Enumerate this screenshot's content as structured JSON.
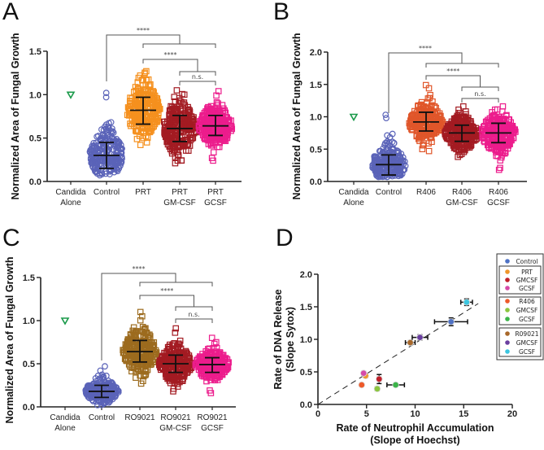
{
  "panels": [
    {
      "letter": "A",
      "ylabel": "Normalized Area of  Fungal Growth",
      "ylim": [
        0,
        1.5
      ],
      "yticks": [
        {
          "v": 0,
          "label": "0.0"
        },
        {
          "v": 0.5,
          "label": "0.5"
        },
        {
          "v": 1.0,
          "label": "1.0"
        },
        {
          "v": 1.5,
          "label": "1.5"
        }
      ],
      "groups": [
        {
          "label": [
            "Candida",
            "Alone"
          ],
          "marker": "triangle",
          "color": "#1a9a4a",
          "mean": 1.0
        },
        {
          "label": [
            "Control"
          ],
          "marker": "circle",
          "color": "#5a63b8",
          "mean": 0.3,
          "sd_low": 0.15,
          "sd_high": 0.45,
          "min": 0.07,
          "max": 1.02
        },
        {
          "label": [
            "PRT"
          ],
          "marker": "square",
          "color": "#f5901e",
          "mean": 0.82,
          "sd_low": 0.66,
          "sd_high": 0.97,
          "min": 0.42,
          "max": 1.27
        },
        {
          "label": [
            "PRT",
            "GM-CSF"
          ],
          "marker": "square",
          "color": "#a31b22",
          "mean": 0.61,
          "sd_low": 0.46,
          "sd_high": 0.76,
          "min": 0.21,
          "max": 1.05
        },
        {
          "label": [
            "PRT",
            "GCSF"
          ],
          "marker": "square",
          "color": "#ec1c8c",
          "mean": 0.64,
          "sd_low": 0.53,
          "sd_high": 0.76,
          "min": 0.24,
          "max": 1.04
        }
      ],
      "brackets": [
        {
          "label": "****"
        },
        {
          "label": "****"
        },
        {
          "label": "n.s."
        }
      ]
    },
    {
      "letter": "B",
      "ylabel": "Normalized Area of  Fungal Growth",
      "ylim": [
        0,
        2.0
      ],
      "yticks": [
        {
          "v": 0,
          "label": "0.0"
        },
        {
          "v": 0.5,
          "label": "0.5"
        },
        {
          "v": 1.0,
          "label": "1.0"
        },
        {
          "v": 1.5,
          "label": "1.5"
        },
        {
          "v": 2.0,
          "label": "2.0"
        }
      ],
      "groups": [
        {
          "label": [
            "Candida",
            "Alone"
          ],
          "marker": "triangle",
          "color": "#1a9a4a",
          "mean": 1.0
        },
        {
          "label": [
            "Control"
          ],
          "marker": "circle",
          "color": "#5a63b8",
          "mean": 0.26,
          "sd_low": 0.1,
          "sd_high": 0.41,
          "min": 0.07,
          "max": 1.03
        },
        {
          "label": [
            "R406"
          ],
          "marker": "square",
          "color": "#e0562a",
          "mean": 0.92,
          "sd_low": 0.78,
          "sd_high": 1.07,
          "min": 0.47,
          "max": 1.49
        },
        {
          "label": [
            "R406",
            "GM-CSF"
          ],
          "marker": "square",
          "color": "#a31b22",
          "mean": 0.75,
          "sd_low": 0.62,
          "sd_high": 0.87,
          "min": 0.38,
          "max": 1.16
        },
        {
          "label": [
            "R406",
            "GCSF"
          ],
          "marker": "square",
          "color": "#ec1c8c",
          "mean": 0.75,
          "sd_low": 0.6,
          "sd_high": 0.9,
          "min": 0.18,
          "max": 1.16
        }
      ],
      "brackets": [
        {
          "label": "****"
        },
        {
          "label": "****"
        },
        {
          "label": "n.s."
        }
      ]
    },
    {
      "letter": "C",
      "ylabel": "Normalized Area of  Fungal Growth",
      "ylim": [
        0,
        1.5
      ],
      "yticks": [
        {
          "v": 0,
          "label": "0.0"
        },
        {
          "v": 0.5,
          "label": "0.5"
        },
        {
          "v": 1.0,
          "label": "1.0"
        },
        {
          "v": 1.5,
          "label": "1.5"
        }
      ],
      "groups": [
        {
          "label": [
            "Candida",
            "Alone"
          ],
          "marker": "triangle",
          "color": "#1a9a4a",
          "mean": 1.0
        },
        {
          "label": [
            "Control"
          ],
          "marker": "circle",
          "color": "#5a63b8",
          "mean": 0.18,
          "sd_low": 0.11,
          "sd_high": 0.25,
          "min": 0.02,
          "max": 0.47
        },
        {
          "label": [
            "RO9021"
          ],
          "marker": "square",
          "color": "#9c6b1e",
          "mean": 0.64,
          "sd_low": 0.52,
          "sd_high": 0.77,
          "min": 0.27,
          "max": 1.1
        },
        {
          "label": [
            "RO9021",
            "GM-CSF"
          ],
          "marker": "square",
          "color": "#a31b22",
          "mean": 0.5,
          "sd_low": 0.4,
          "sd_high": 0.6,
          "min": 0.18,
          "max": 0.91
        },
        {
          "label": [
            "RO9021",
            "GCSF"
          ],
          "marker": "square",
          "color": "#ec1c8c",
          "mean": 0.49,
          "sd_low": 0.4,
          "sd_high": 0.57,
          "min": 0.16,
          "max": 0.8
        }
      ],
      "brackets": [
        {
          "label": "****"
        },
        {
          "label": "****"
        },
        {
          "label": "n.s."
        }
      ]
    }
  ],
  "chart_data": {
    "type": "scatter",
    "letter": "D",
    "xlabel": [
      "Rate of  Neutrophil Accumulation",
      "(Slope of  Hoechst)"
    ],
    "ylabel": [
      "Rate of DNA Release",
      "(Slope Sytox)"
    ],
    "xlim": [
      0,
      20
    ],
    "ylim": [
      0,
      2.0
    ],
    "xticks": [
      {
        "v": 0,
        "label": "0"
      },
      {
        "v": 5,
        "label": "5"
      },
      {
        "v": 10,
        "label": "10"
      },
      {
        "v": 15,
        "label": "15"
      },
      {
        "v": 20,
        "label": "20"
      }
    ],
    "yticks": [
      {
        "v": 0,
        "label": "0.0"
      },
      {
        "v": 0.5,
        "label": "0.5"
      },
      {
        "v": 1.0,
        "label": "1.0"
      },
      {
        "v": 1.5,
        "label": "1.5"
      },
      {
        "v": 2.0,
        "label": "2.0"
      }
    ],
    "trendline": {
      "style": "dashed",
      "from": [
        0,
        0
      ],
      "to": [
        16.5,
        1.55
      ]
    },
    "legend_position": "right",
    "legend_groups": [
      [
        {
          "name": "Control",
          "color": "#4f72c4"
        }
      ],
      [
        {
          "name": "PRT",
          "color": "#f0962a"
        },
        {
          "name": "GMCSF",
          "color": "#c0202a"
        },
        {
          "name": "GCSF",
          "color": "#d64aa8"
        }
      ],
      [
        {
          "name": "R406",
          "color": "#ee5a2a"
        },
        {
          "name": "GMCSF",
          "color": "#8cc63f"
        },
        {
          "name": "GCSF",
          "color": "#3cb44a"
        }
      ],
      [
        {
          "name": "R09021",
          "color": "#a8682a"
        },
        {
          "name": "GMCSF",
          "color": "#6a3fa0"
        },
        {
          "name": "GCSF",
          "color": "#3cc6e0"
        }
      ]
    ],
    "points": [
      {
        "series": "Control",
        "color": "#4f72c4",
        "x": 13.7,
        "y": 1.27,
        "xerr": 1.7,
        "yerr": 0.06
      },
      {
        "series": "PRT",
        "color": "#f0962a",
        "x": 4.9,
        "y": 0.44,
        "xerr": 0.1,
        "yerr": 0.03
      },
      {
        "series": "PRT GMCSF",
        "color": "#c0202a",
        "x": 6.3,
        "y": 0.39,
        "xerr": 0.2,
        "yerr": 0.07
      },
      {
        "series": "PRT GCSF",
        "color": "#d64aa8",
        "x": 4.7,
        "y": 0.48,
        "xerr": 0.1,
        "yerr": 0.03
      },
      {
        "series": "R406",
        "color": "#ee5a2a",
        "x": 4.5,
        "y": 0.3,
        "xerr": 0.1,
        "yerr": 0.02
      },
      {
        "series": "R406 GMCSF",
        "color": "#8cc63f",
        "x": 6.1,
        "y": 0.24,
        "xerr": 0.2,
        "yerr": 0.03
      },
      {
        "series": "R406 GCSF",
        "color": "#3cb44a",
        "x": 8.0,
        "y": 0.3,
        "xerr": 0.9,
        "yerr": 0.02
      },
      {
        "series": "R09021",
        "color": "#a8682a",
        "x": 9.5,
        "y": 0.95,
        "xerr": 0.5,
        "yerr": 0.03
      },
      {
        "series": "R09021 GMCSF",
        "color": "#6a3fa0",
        "x": 10.5,
        "y": 1.03,
        "xerr": 0.8,
        "yerr": 0.04
      },
      {
        "series": "R09021 GCSF",
        "color": "#3cc6e0",
        "x": 15.3,
        "y": 1.57,
        "xerr": 0.6,
        "yerr": 0.05
      }
    ]
  }
}
